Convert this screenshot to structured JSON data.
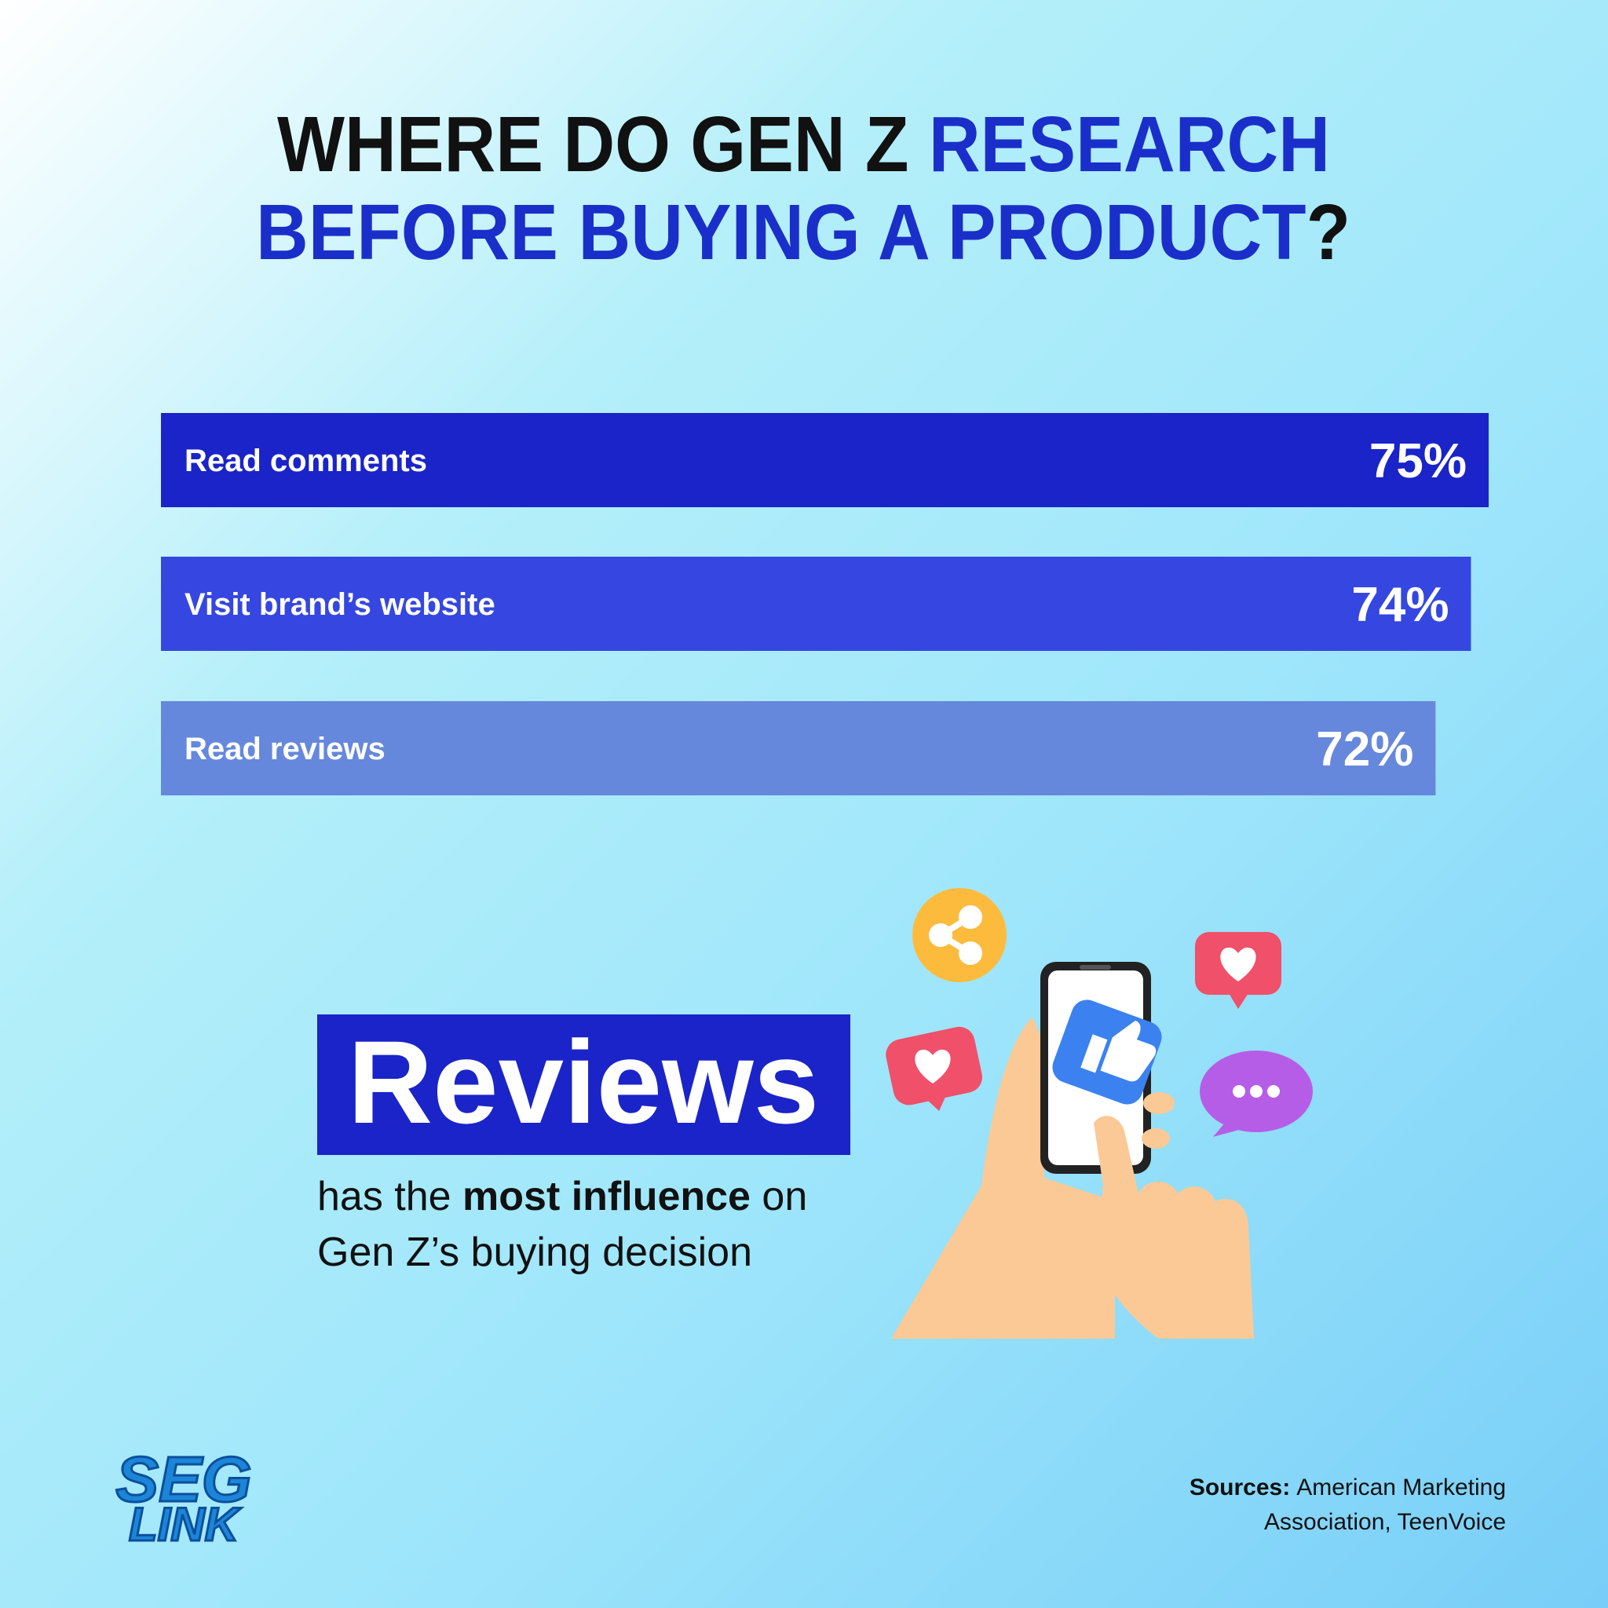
{
  "chart_data": {
    "type": "bar",
    "orientation": "horizontal",
    "title_lines": [
      [
        {
          "text": "WHERE DO GEN Z ",
          "color": "#111111"
        },
        {
          "text": "RESEARCH",
          "color": "#1a2fc9"
        }
      ],
      [
        {
          "text": "BEFORE BUYING A PRODUCT",
          "color": "#1a2fc9"
        },
        {
          "text": "?",
          "color": "#111111"
        }
      ]
    ],
    "categories": [
      "Read comments",
      "Visit brand’s website",
      "Read reviews"
    ],
    "values": [
      75,
      74,
      72
    ],
    "value_labels": [
      "75%",
      "74%",
      "72%"
    ],
    "colors": [
      "#1a24c8",
      "#3547e0",
      "#6688dc"
    ]
  },
  "callout": {
    "headline": "Reviews",
    "line1": [
      {
        "text": "has the ",
        "bold": false
      },
      {
        "text": "most influence",
        "bold": true
      },
      {
        "text": " on",
        "bold": false
      }
    ],
    "line2": "Gen Z’s buying decision"
  },
  "sources": {
    "label": "Sources:",
    "line1": "American Marketing",
    "line2": "Association, TeenVoice"
  },
  "logo": {
    "top": "SEG",
    "bottom": "LINK"
  }
}
